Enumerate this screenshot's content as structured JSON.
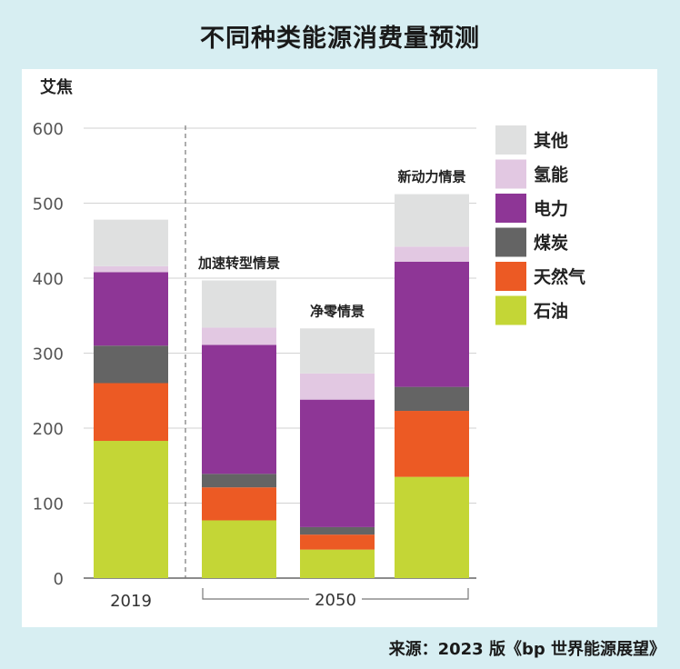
{
  "title": "不同种类能源消费量预测",
  "source": "来源：2023 版《bp 世界能源展望》",
  "chart_data": {
    "type": "bar",
    "stacked": true,
    "ylabel": "艾焦",
    "ylim": [
      0,
      600
    ],
    "yticks": [
      0,
      100,
      200,
      300,
      400,
      500,
      600
    ],
    "grid": true,
    "legend_position": "right",
    "bars": [
      {
        "label": "2019",
        "scenario": ""
      },
      {
        "label": "",
        "scenario": "加速转型情景"
      },
      {
        "label": "",
        "scenario": "净零情景"
      },
      {
        "label": "",
        "scenario": "新动力情景"
      }
    ],
    "group_label": "2050",
    "series": [
      {
        "name": "石油",
        "color": "#c4d636",
        "values": [
          183,
          77,
          38,
          135
        ]
      },
      {
        "name": "天然气",
        "color": "#ec5a24",
        "values": [
          77,
          44,
          20,
          88
        ]
      },
      {
        "name": "煤炭",
        "color": "#646464",
        "values": [
          50,
          18,
          10,
          32
        ]
      },
      {
        "name": "电力",
        "color": "#8e3696",
        "values": [
          98,
          172,
          170,
          167
        ]
      },
      {
        "name": "氢能",
        "color": "#e2c8e2",
        "values": [
          8,
          23,
          35,
          20
        ]
      },
      {
        "name": "其他",
        "color": "#dfe0e0",
        "values": [
          62,
          63,
          60,
          70
        ]
      }
    ]
  }
}
